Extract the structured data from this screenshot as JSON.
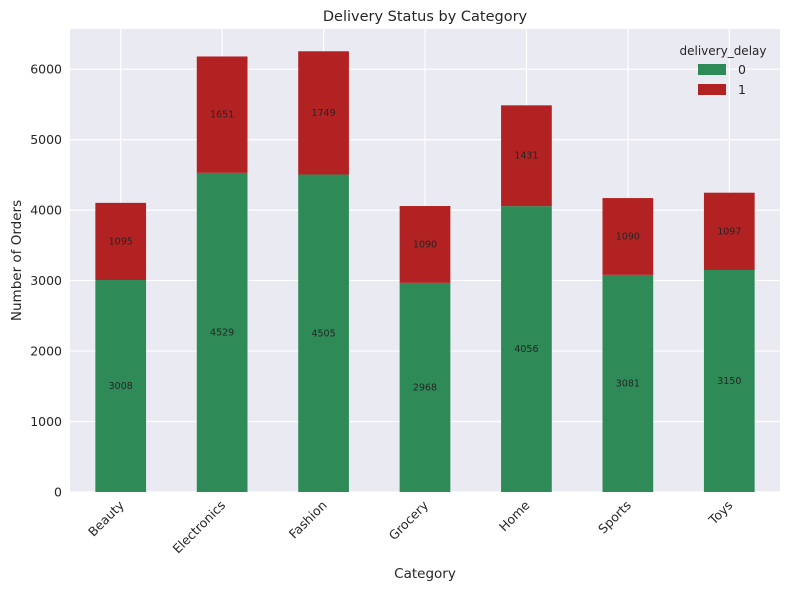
{
  "chart_data": {
    "type": "bar",
    "stacked": true,
    "title": "Delivery Status by Category",
    "xlabel": "Category",
    "ylabel": "Number of Orders",
    "categories": [
      "Beauty",
      "Electronics",
      "Fashion",
      "Grocery",
      "Home",
      "Sports",
      "Toys"
    ],
    "series": [
      {
        "name": "0",
        "color": "#2e8b57",
        "values": [
          3008,
          4529,
          4505,
          2968,
          4056,
          3081,
          3150
        ]
      },
      {
        "name": "1",
        "color": "#b22222",
        "values": [
          1095,
          1651,
          1749,
          1090,
          1431,
          1090,
          1097
        ]
      }
    ],
    "ylim": [
      0,
      6570
    ],
    "yticks": [
      0,
      1000,
      2000,
      3000,
      4000,
      5000,
      6000
    ],
    "legend_title": "delivery_delay",
    "legend_position": "top-right",
    "grid": true,
    "background": "#eaeaf2"
  }
}
